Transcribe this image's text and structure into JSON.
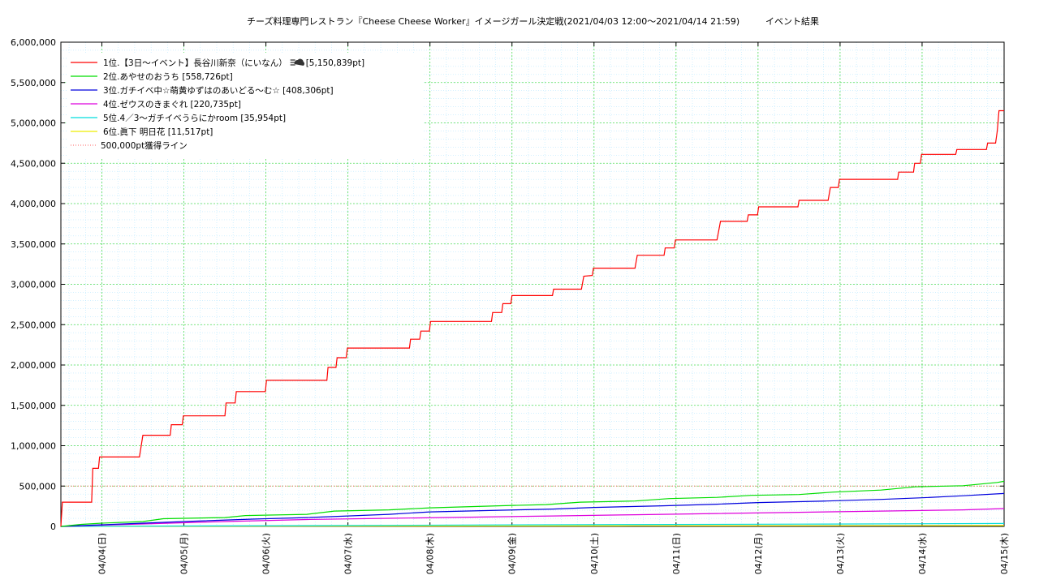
{
  "chart_data": {
    "type": "line",
    "title": "チーズ料理専門レストラン『Cheese Cheese Worker』イメージガール決定戦(2021/04/03 12:00〜2021/04/14 21:59)",
    "subtitle": "イベント結果",
    "y_ticks": [
      "0",
      "500,000",
      "1,000,000",
      "1,500,000",
      "2,000,000",
      "2,500,000",
      "3,000,000",
      "3,500,000",
      "4,000,000",
      "4,500,000",
      "5,000,000",
      "5,500,000",
      "6,000,000"
    ],
    "ylim": [
      0,
      6000000
    ],
    "x_tick_labels": [
      "04/04(日)",
      "04/05(月)",
      "04/06(火)",
      "04/07(水)",
      "04/08(木)",
      "04/09(金)",
      "04/10(土)",
      "04/11(日)",
      "04/12(月)",
      "04/13(火)",
      "04/14(水)",
      "04/15(木)"
    ],
    "x_start": "2021-04-03 12:00",
    "x_end": "2021-04-15 00:00",
    "grid": true,
    "legend_position": "top-left",
    "reference_line": {
      "name": "500,000pt獲得ライン",
      "value": 500000,
      "color": "#ff6060"
    },
    "series": [
      {
        "name": "1位.【3日〜イベント】長谷川新奈（にいなん）",
        "badge": "[5,150,839pt]",
        "color": "#ff0000",
        "points": [
          [
            "2021-04-03 12:00",
            0
          ],
          [
            "2021-04-03 12:25",
            300000
          ],
          [
            "2021-04-03 21:00",
            300000
          ],
          [
            "2021-04-03 21:20",
            720000
          ],
          [
            "2021-04-03 23:00",
            720000
          ],
          [
            "2021-04-03 23:20",
            860000
          ],
          [
            "2021-04-04 11:00",
            860000
          ],
          [
            "2021-04-04 12:00",
            1130000
          ],
          [
            "2021-04-04 20:00",
            1130000
          ],
          [
            "2021-04-04 20:20",
            1260000
          ],
          [
            "2021-04-04 23:30",
            1260000
          ],
          [
            "2021-04-04 23:50",
            1370000
          ],
          [
            "2021-04-05 12:00",
            1370000
          ],
          [
            "2021-04-05 12:20",
            1530000
          ],
          [
            "2021-04-05 15:00",
            1530000
          ],
          [
            "2021-04-05 15:20",
            1670000
          ],
          [
            "2021-04-05 23:50",
            1670000
          ],
          [
            "2021-04-06 00:10",
            1810000
          ],
          [
            "2021-04-06 17:50",
            1810000
          ],
          [
            "2021-04-06 18:10",
            1970000
          ],
          [
            "2021-04-06 20:30",
            1970000
          ],
          [
            "2021-04-06 20:50",
            2090000
          ],
          [
            "2021-04-06 23:30",
            2090000
          ],
          [
            "2021-04-06 23:50",
            2210000
          ],
          [
            "2021-04-07 18:00",
            2210000
          ],
          [
            "2021-04-07 18:20",
            2320000
          ],
          [
            "2021-04-07 21:00",
            2320000
          ],
          [
            "2021-04-07 21:20",
            2420000
          ],
          [
            "2021-04-07 23:50",
            2420000
          ],
          [
            "2021-04-08 00:10",
            2540000
          ],
          [
            "2021-04-08 18:00",
            2540000
          ],
          [
            "2021-04-08 18:20",
            2650000
          ],
          [
            "2021-04-08 21:00",
            2650000
          ],
          [
            "2021-04-08 21:20",
            2760000
          ],
          [
            "2021-04-08 23:40",
            2760000
          ],
          [
            "2021-04-09 00:00",
            2860000
          ],
          [
            "2021-04-09 11:50",
            2860000
          ],
          [
            "2021-04-09 12:10",
            2940000
          ],
          [
            "2021-04-09 20:20",
            2940000
          ],
          [
            "2021-04-09 21:00",
            3100000
          ],
          [
            "2021-04-09 23:30",
            3110000
          ],
          [
            "2021-04-09 23:50",
            3200000
          ],
          [
            "2021-04-10 12:00",
            3200000
          ],
          [
            "2021-04-10 12:40",
            3360000
          ],
          [
            "2021-04-10 20:30",
            3360000
          ],
          [
            "2021-04-10 20:50",
            3450000
          ],
          [
            "2021-04-10 23:30",
            3450000
          ],
          [
            "2021-04-10 23:50",
            3550000
          ],
          [
            "2021-04-11 12:00",
            3550000
          ],
          [
            "2021-04-11 13:00",
            3780000
          ],
          [
            "2021-04-11 20:50",
            3780000
          ],
          [
            "2021-04-11 21:10",
            3860000
          ],
          [
            "2021-04-11 23:50",
            3860000
          ],
          [
            "2021-04-12 00:10",
            3960000
          ],
          [
            "2021-04-12 11:40",
            3960000
          ],
          [
            "2021-04-12 12:00",
            4040000
          ],
          [
            "2021-04-12 20:30",
            4040000
          ],
          [
            "2021-04-12 21:10",
            4200000
          ],
          [
            "2021-04-12 23:30",
            4200000
          ],
          [
            "2021-04-12 23:50",
            4300000
          ],
          [
            "2021-04-13 16:50",
            4300000
          ],
          [
            "2021-04-13 17:10",
            4390000
          ],
          [
            "2021-04-13 21:30",
            4390000
          ],
          [
            "2021-04-13 21:50",
            4500000
          ],
          [
            "2021-04-13 23:30",
            4500000
          ],
          [
            "2021-04-13 23:50",
            4610000
          ],
          [
            "2021-04-14 09:50",
            4610000
          ],
          [
            "2021-04-14 10:10",
            4670000
          ],
          [
            "2021-04-14 18:50",
            4670000
          ],
          [
            "2021-04-14 19:10",
            4750000
          ],
          [
            "2021-04-14 21:30",
            4750000
          ],
          [
            "2021-04-14 22:00",
            4900000
          ],
          [
            "2021-04-14 22:30",
            5150839
          ],
          [
            "2021-04-15 00:00",
            5150839
          ]
        ]
      },
      {
        "name": "2位.あやせのおうち",
        "badge": "[558,726pt]",
        "color": "#00dd00",
        "points": [
          [
            "2021-04-03 12:00",
            0
          ],
          [
            "2021-04-03 18:00",
            25000
          ],
          [
            "2021-04-04 00:00",
            40000
          ],
          [
            "2021-04-04 12:00",
            60000
          ],
          [
            "2021-04-04 18:00",
            95000
          ],
          [
            "2021-04-05 12:00",
            110000
          ],
          [
            "2021-04-05 18:00",
            135000
          ],
          [
            "2021-04-06 12:00",
            150000
          ],
          [
            "2021-04-06 20:00",
            190000
          ],
          [
            "2021-04-07 12:00",
            205000
          ],
          [
            "2021-04-08 00:00",
            230000
          ],
          [
            "2021-04-08 20:00",
            255000
          ],
          [
            "2021-04-09 10:00",
            270000
          ],
          [
            "2021-04-09 20:00",
            300000
          ],
          [
            "2021-04-10 12:00",
            315000
          ],
          [
            "2021-04-10 22:00",
            345000
          ],
          [
            "2021-04-11 12:00",
            360000
          ],
          [
            "2021-04-11 22:00",
            385000
          ],
          [
            "2021-04-12 12:00",
            395000
          ],
          [
            "2021-04-12 22:00",
            425000
          ],
          [
            "2021-04-13 12:00",
            450000
          ],
          [
            "2021-04-13 22:00",
            490000
          ],
          [
            "2021-04-14 12:00",
            505000
          ],
          [
            "2021-04-14 22:00",
            545000
          ],
          [
            "2021-04-15 00:00",
            558726
          ]
        ]
      },
      {
        "name": "3位.ガチイベ中☆萌黄ゆずはのあいどる〜む☆",
        "badge": "[408,306pt]",
        "color": "#0000dd",
        "points": [
          [
            "2021-04-03 12:00",
            0
          ],
          [
            "2021-04-04 00:00",
            20000
          ],
          [
            "2021-04-04 12:00",
            40000
          ],
          [
            "2021-04-05 00:00",
            60000
          ],
          [
            "2021-04-05 20:00",
            90000
          ],
          [
            "2021-04-06 12:00",
            110000
          ],
          [
            "2021-04-07 00:00",
            130000
          ],
          [
            "2021-04-07 12:00",
            150000
          ],
          [
            "2021-04-08 00:00",
            180000
          ],
          [
            "2021-04-08 20:00",
            200000
          ],
          [
            "2021-04-09 12:00",
            215000
          ],
          [
            "2021-04-10 00:00",
            235000
          ],
          [
            "2021-04-10 20:00",
            255000
          ],
          [
            "2021-04-11 12:00",
            275000
          ],
          [
            "2021-04-12 00:00",
            295000
          ],
          [
            "2021-04-12 20:00",
            315000
          ],
          [
            "2021-04-13 12:00",
            335000
          ],
          [
            "2021-04-14 00:00",
            355000
          ],
          [
            "2021-04-14 12:00",
            380000
          ],
          [
            "2021-04-15 00:00",
            408306
          ]
        ]
      },
      {
        "name": "4位.ゼウスのきまぐれ",
        "badge": "[220,735pt]",
        "color": "#dd00dd",
        "points": [
          [
            "2021-04-03 12:00",
            0
          ],
          [
            "2021-04-04 12:00",
            30000
          ],
          [
            "2021-04-05 12:00",
            60000
          ],
          [
            "2021-04-06 12:00",
            85000
          ],
          [
            "2021-04-07 12:00",
            100000
          ],
          [
            "2021-04-08 12:00",
            115000
          ],
          [
            "2021-04-09 12:00",
            130000
          ],
          [
            "2021-04-10 12:00",
            145000
          ],
          [
            "2021-04-11 12:00",
            160000
          ],
          [
            "2021-04-12 12:00",
            175000
          ],
          [
            "2021-04-13 12:00",
            190000
          ],
          [
            "2021-04-14 12:00",
            205000
          ],
          [
            "2021-04-15 00:00",
            220735
          ]
        ]
      },
      {
        "name": "5位.4／3〜ガチイベうらにかroom",
        "badge": "[35,954pt]",
        "color": "#00dddd",
        "points": [
          [
            "2021-04-03 12:00",
            0
          ],
          [
            "2021-04-06 12:00",
            10000
          ],
          [
            "2021-04-09 12:00",
            20000
          ],
          [
            "2021-04-12 12:00",
            28000
          ],
          [
            "2021-04-15 00:00",
            35954
          ]
        ]
      },
      {
        "name": "6位.眞下 明日花",
        "badge": "[11,517pt]",
        "color": "#eeee00",
        "points": [
          [
            "2021-04-03 12:00",
            0
          ],
          [
            "2021-04-06 12:00",
            4000
          ],
          [
            "2021-04-10 12:00",
            8000
          ],
          [
            "2021-04-15 00:00",
            11517
          ]
        ]
      }
    ]
  }
}
